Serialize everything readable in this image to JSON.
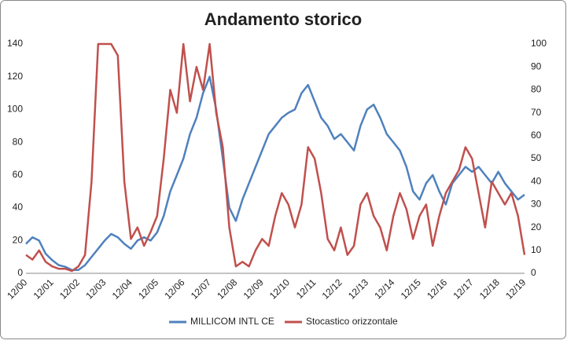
{
  "chart_data": {
    "type": "line",
    "title": "Andamento storico",
    "categories": [
      "12/00",
      null,
      null,
      null,
      "12/01",
      null,
      null,
      null,
      "12/02",
      null,
      null,
      null,
      "12/03",
      null,
      null,
      null,
      "12/04",
      null,
      null,
      null,
      "12/05",
      null,
      null,
      null,
      "12/06",
      null,
      null,
      null,
      "12/07",
      null,
      null,
      null,
      "12/08",
      null,
      null,
      null,
      "12/09",
      null,
      null,
      null,
      "12/10",
      null,
      null,
      null,
      "12/11",
      null,
      null,
      null,
      "12/12",
      null,
      null,
      null,
      "12/13",
      null,
      null,
      null,
      "12/14",
      null,
      null,
      null,
      "12/15",
      null,
      null,
      null,
      "12/16",
      null,
      null,
      null,
      "12/17",
      null,
      null,
      null,
      "12/18",
      null,
      null,
      null,
      "12/19"
    ],
    "series": [
      {
        "name": "MILLICOM INTL CE",
        "color": "#4f81bd",
        "axis": "y",
        "values": [
          18,
          22,
          20,
          12,
          8,
          5,
          4,
          2,
          2,
          5,
          10,
          15,
          20,
          24,
          22,
          18,
          15,
          20,
          22,
          20,
          25,
          35,
          50,
          60,
          70,
          85,
          95,
          110,
          120,
          100,
          70,
          40,
          32,
          45,
          55,
          65,
          75,
          85,
          90,
          95,
          98,
          100,
          110,
          115,
          105,
          95,
          90,
          82,
          85,
          80,
          75,
          90,
          100,
          103,
          95,
          85,
          80,
          75,
          65,
          50,
          45,
          55,
          60,
          50,
          42,
          55,
          60,
          65,
          62,
          65,
          60,
          55,
          62,
          55,
          50,
          45,
          48
        ]
      },
      {
        "name": "Stocastico orizzontale",
        "color": "#c0504d",
        "axis": "y2",
        "values": [
          8,
          6,
          10,
          5,
          3,
          2,
          2,
          1,
          3,
          8,
          40,
          100,
          100,
          100,
          95,
          40,
          15,
          20,
          12,
          18,
          25,
          50,
          80,
          70,
          100,
          75,
          90,
          80,
          100,
          70,
          55,
          20,
          3,
          5,
          3,
          10,
          15,
          12,
          25,
          35,
          30,
          20,
          30,
          55,
          50,
          35,
          15,
          10,
          20,
          8,
          12,
          30,
          35,
          25,
          20,
          10,
          25,
          35,
          28,
          15,
          25,
          30,
          12,
          25,
          35,
          40,
          45,
          55,
          50,
          35,
          20,
          40,
          35,
          30,
          35,
          25,
          8
        ]
      }
    ],
    "ylim": [
      0,
      140
    ],
    "yticks": [
      0,
      20,
      40,
      60,
      80,
      100,
      120,
      140
    ],
    "y2lim": [
      0,
      100
    ],
    "y2ticks": [
      0,
      10,
      20,
      30,
      40,
      50,
      60,
      70,
      80,
      90,
      100
    ],
    "legend": "bottom"
  }
}
